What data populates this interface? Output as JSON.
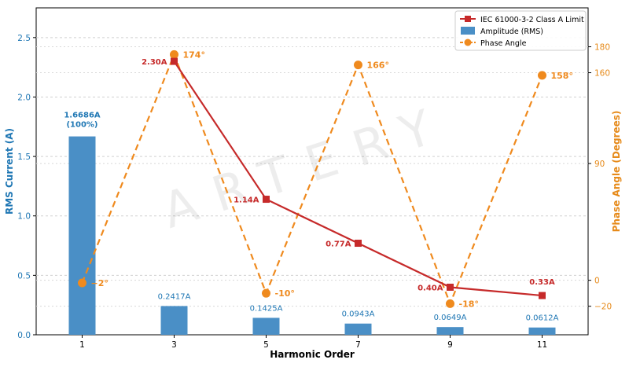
{
  "chart_data": {
    "type": "bar",
    "watermark": "ARTERY",
    "xlabel": "Harmonic Order",
    "ylabel": "RMS Current (A)",
    "y2label": "Phase Angle (Degrees)",
    "categories": [
      "1",
      "3",
      "5",
      "7",
      "9",
      "11"
    ],
    "ylim": [
      0,
      2.75
    ],
    "yticks": [
      "0.0",
      "0.5",
      "1.0",
      "1.5",
      "2.0",
      "2.5"
    ],
    "y2lim": [
      -42,
      210
    ],
    "y2ticks": [
      "−20",
      "0",
      "90",
      "160",
      "180"
    ],
    "grid": true,
    "legend_position": "top-right",
    "colors": {
      "amplitude": "#4a8fc6",
      "limit": "#c62a2a",
      "phase": "#ef8a1e",
      "left_axis": "#1f77b4",
      "right_axis": "#e68a1a"
    },
    "series": [
      {
        "name": "Amplitude (RMS)",
        "kind": "bar",
        "axis": "left",
        "values": [
          1.6686,
          0.2417,
          0.1425,
          0.0943,
          0.0649,
          0.0612
        ],
        "labels": [
          "1.6686A\n(100%)",
          "0.2417A",
          "0.1425A",
          "0.0943A",
          "0.0649A",
          "0.0612A"
        ]
      },
      {
        "name": "IEC 61000-3-2 Class A Limit",
        "kind": "line",
        "axis": "left",
        "x": [
          "3",
          "5",
          "7",
          "9",
          "11"
        ],
        "values": [
          2.3,
          1.14,
          0.77,
          0.4,
          0.33
        ],
        "labels": [
          "2.30A",
          "1.14A",
          "0.77A",
          "0.40A",
          "0.33A"
        ]
      },
      {
        "name": "Phase Angle",
        "kind": "line",
        "axis": "right",
        "values": [
          -2,
          174,
          -10,
          166,
          -18,
          158
        ],
        "labels": [
          "−2°",
          "174°",
          "-10°",
          "166°",
          "-18°",
          "158°"
        ]
      }
    ]
  }
}
